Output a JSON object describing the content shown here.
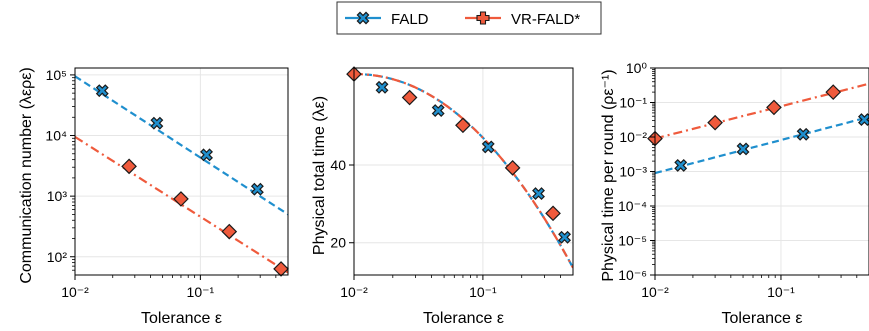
{
  "legend": {
    "placement": "top-center",
    "entries": [
      {
        "label": "FALD",
        "color": "#1f8fce",
        "marker": "x-filled",
        "dash": "dashed"
      },
      {
        "label": "VR-FALD*",
        "color": "#ef5a3c",
        "marker": "plus-filled",
        "dash": "dashdot"
      }
    ]
  },
  "chart_data": [
    {
      "type": "line",
      "xlabel": "Tolerance ε",
      "ylabel": "Communication number (λερε)",
      "xscale": "log",
      "yscale": "log",
      "xlim": [
        0.01,
        0.5
      ],
      "ylim": [
        50,
        130000
      ],
      "xticks": [
        {
          "v": 0.01,
          "label": "10⁻²"
        },
        {
          "v": 0.1,
          "label": "10⁻¹"
        }
      ],
      "yticks": [
        {
          "v": 100,
          "label": "10²"
        },
        {
          "v": 1000,
          "label": "10³"
        },
        {
          "v": 10000,
          "label": "10⁴"
        },
        {
          "v": 100000,
          "label": "10⁵"
        }
      ],
      "grid": true,
      "series": [
        {
          "name": "FALD",
          "x": [
            0.01,
            0.5
          ],
          "y": [
            95000,
            500
          ],
          "marker": "x",
          "points": {
            "x": [
              0.0165,
              0.045,
              0.112,
              0.285
            ],
            "y": [
              55000,
              16000,
              4800,
              1300
            ]
          }
        },
        {
          "name": "VR-FALD*",
          "x": [
            0.01,
            0.5
          ],
          "y": [
            9500,
            55
          ],
          "marker": "diamond",
          "points": {
            "x": [
              0.027,
              0.07,
              0.17,
              0.44
            ],
            "y": [
              3100,
              900,
              260,
              63
            ]
          }
        }
      ]
    },
    {
      "type": "line",
      "xlabel": "Tolerance ε",
      "ylabel": "Physical total time (λε)",
      "xscale": "log",
      "yscale": "log",
      "xlim": [
        0.01,
        0.5
      ],
      "ylim": [
        15,
        95
      ],
      "xticks": [
        {
          "v": 0.01,
          "label": "10⁻²"
        },
        {
          "v": 0.1,
          "label": "10⁻¹"
        }
      ],
      "yticks": [
        {
          "v": 20,
          "label": "20"
        },
        {
          "v": 40,
          "label": "40"
        }
      ],
      "grid": true,
      "series": [
        {
          "name": "FALD",
          "x": [
            0.01,
            0.5
          ],
          "y": [
            90,
            16
          ],
          "marker": "x",
          "points": {
            "x": [
              0.0165,
              0.045,
              0.11,
              0.27,
              0.43
            ],
            "y": [
              80,
              65,
              47,
              31,
              21
            ]
          }
        },
        {
          "name": "VR-FALD*",
          "x": [
            0.01,
            0.5
          ],
          "y": [
            90,
            16
          ],
          "marker": "diamond",
          "points": {
            "x": [
              0.01,
              0.027,
              0.07,
              0.17,
              0.35
            ],
            "y": [
              90,
              73,
              57,
              39,
              26
            ]
          }
        }
      ]
    },
    {
      "type": "line",
      "xlabel": "Tolerance ε",
      "ylabel": "Physical time per round (ρε⁻¹)",
      "xscale": "log",
      "yscale": "log",
      "xlim": [
        0.01,
        0.5
      ],
      "ylim": [
        1e-06,
        1
      ],
      "xticks": [
        {
          "v": 0.01,
          "label": "10⁻²"
        },
        {
          "v": 0.1,
          "label": "10⁻¹"
        }
      ],
      "yticks": [
        {
          "v": 1e-06,
          "label": "10⁻⁶"
        },
        {
          "v": 1e-05,
          "label": "10⁻⁵"
        },
        {
          "v": 0.0001,
          "label": "10⁻⁴"
        },
        {
          "v": 0.001,
          "label": "10⁻³"
        },
        {
          "v": 0.01,
          "label": "10⁻²"
        },
        {
          "v": 0.1,
          "label": "10⁻¹"
        },
        {
          "v": 1,
          "label": "10⁰"
        }
      ],
      "grid": true,
      "series": [
        {
          "name": "FALD",
          "x": [
            0.01,
            0.5
          ],
          "y": [
            0.0009,
            0.038
          ],
          "marker": "x",
          "points": {
            "x": [
              0.016,
              0.05,
              0.15,
              0.46
            ],
            "y": [
              0.0015,
              0.0045,
              0.012,
              0.032
            ]
          }
        },
        {
          "name": "VR-FALD*",
          "x": [
            0.01,
            0.5
          ],
          "y": [
            0.009,
            0.35
          ],
          "marker": "diamond",
          "points": {
            "x": [
              0.01,
              0.03,
              0.088,
              0.26
            ],
            "y": [
              0.009,
              0.026,
              0.072,
              0.2
            ]
          }
        }
      ]
    }
  ]
}
